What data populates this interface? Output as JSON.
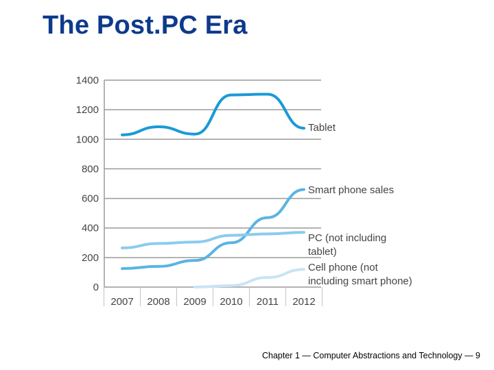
{
  "slide": {
    "title": "The Post.PC Era",
    "footer": "Chapter 1 — Computer Abstractions and Technology — 9"
  },
  "chart_data": {
    "type": "line",
    "x": [
      "2007",
      "2008",
      "2009",
      "2010",
      "2011",
      "2012"
    ],
    "ylim": [
      0,
      1400
    ],
    "yticks": [
      0,
      200,
      400,
      600,
      800,
      1000,
      1200,
      1400
    ],
    "grid": true,
    "series": [
      {
        "name": "Tablet",
        "label_lines": [
          "Tablet"
        ],
        "color": "#1a9ad6",
        "values": [
          1030,
          1085,
          1035,
          1300,
          1305,
          1075
        ]
      },
      {
        "name": "Smart phone sales",
        "label_lines": [
          "Smart phone sales"
        ],
        "color": "#5ab4e2",
        "values": [
          125,
          140,
          180,
          300,
          470,
          660
        ]
      },
      {
        "name": "PC (not including tablet)",
        "label_lines": [
          "PC (not including",
          "tablet)"
        ],
        "color": "#8ccbed",
        "values": [
          265,
          295,
          305,
          350,
          360,
          370
        ]
      },
      {
        "name": "Cell phone (not including smart phone)",
        "label_lines": [
          "Cell phone (not",
          "including smart phone)"
        ],
        "color": "#c8e4f5",
        "values": [
          null,
          null,
          0,
          10,
          65,
          120
        ]
      }
    ]
  }
}
